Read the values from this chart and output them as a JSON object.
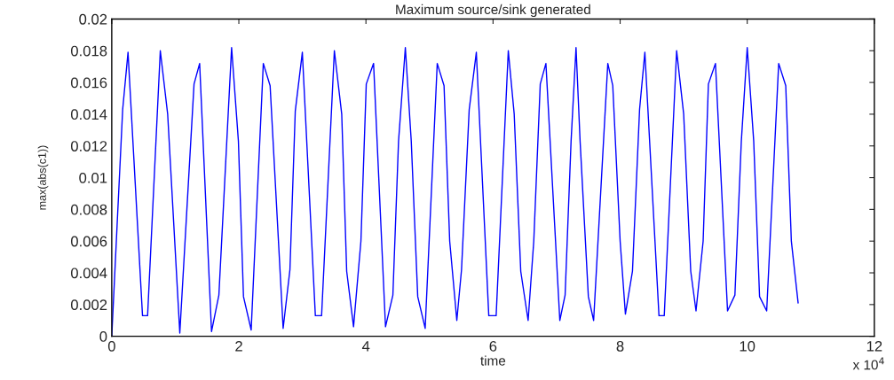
{
  "chart_data": {
    "type": "line",
    "title": "Maximum source/sink generated",
    "xlabel": "time",
    "ylabel": "max(abs(c1))",
    "annotations": [
      "x 10$^{4}$"
    ],
    "x": [
      0,
      0.172,
      0.256,
      0.484,
      0.564,
      0.764,
      0.88,
      1.071,
      1.295,
      1.383,
      1.57,
      1.686,
      1.886,
      1.993,
      2.073,
      2.194,
      2.385,
      2.492,
      2.697,
      2.804,
      2.888,
      2.999,
      3.204,
      3.302,
      3.503,
      3.619,
      3.697,
      3.805,
      3.921,
      4.005,
      4.12,
      4.308,
      4.424,
      4.513,
      4.62,
      4.713,
      4.815,
      4.932,
      5.122,
      5.229,
      5.318,
      5.43,
      5.504,
      5.625,
      5.737,
      5.933,
      6.049,
      6.24,
      6.333,
      6.436,
      6.552,
      6.641,
      6.743,
      6.832,
      7.051,
      7.134,
      7.228,
      7.306,
      7.37,
      7.5,
      7.583,
      7.806,
      7.884,
      8.0,
      8.083,
      8.194,
      8.306,
      8.389,
      8.611,
      8.694,
      8.889,
      9.0,
      9.111,
      9.194,
      9.306,
      9.389,
      9.5,
      9.69,
      9.806,
      9.907,
      10.0,
      10.102,
      10.194,
      10.306,
      10.495,
      10.606,
      10.694,
      10.801
    ],
    "series": [
      {
        "color": "#0000ff",
        "values": [
          0,
          0.0143,
          0.0179,
          0.0013,
          0.0013,
          0.018,
          0.014,
          0.0002,
          0.0159,
          0.0172,
          0.0003,
          0.0026,
          0.0182,
          0.0123,
          0.0025,
          0.0004,
          0.0172,
          0.0158,
          0.0005,
          0.0042,
          0.0142,
          0.0179,
          0.0013,
          0.0013,
          0.018,
          0.014,
          0.0041,
          0.0006,
          0.006,
          0.0159,
          0.0172,
          0.0006,
          0.0026,
          0.0123,
          0.0182,
          0.0123,
          0.0025,
          0.0005,
          0.0172,
          0.0158,
          0.006,
          0.001,
          0.0042,
          0.0143,
          0.0179,
          0.0013,
          0.0013,
          0.018,
          0.014,
          0.0041,
          0.001,
          0.006,
          0.0159,
          0.0172,
          0.001,
          0.0026,
          0.0123,
          0.0182,
          0.0123,
          0.0025,
          0.001,
          0.0172,
          0.0158,
          0.006,
          0.0014,
          0.0041,
          0.0143,
          0.0179,
          0.0013,
          0.0013,
          0.018,
          0.014,
          0.0041,
          0.0016,
          0.006,
          0.0159,
          0.0172,
          0.0016,
          0.0026,
          0.0123,
          0.0182,
          0.0123,
          0.0025,
          0.0016,
          0.0172,
          0.0158,
          0.006,
          0.0021
        ]
      }
    ],
    "xlim": [
      0,
      12
    ],
    "xticks": [
      0,
      2,
      4,
      6,
      8,
      10,
      12
    ],
    "ylim": [
      0,
      0.02
    ],
    "yticks": [
      0,
      0.002,
      0.004,
      0.006,
      0.008,
      0.01,
      0.012,
      0.014,
      0.016,
      0.018,
      0.02
    ],
    "grid": false,
    "line_style": "solid",
    "marker": "none"
  }
}
